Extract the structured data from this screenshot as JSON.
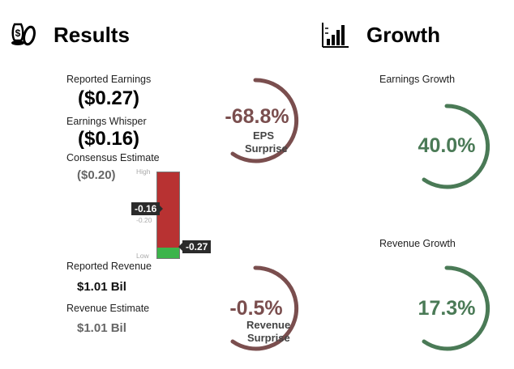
{
  "results": {
    "title": "Results",
    "icon": "money-bag-icon",
    "reported_earnings_label": "Reported Earnings",
    "reported_earnings_value": "($0.27)",
    "earnings_whisper_label": "Earnings Whisper",
    "earnings_whisper_value": "($0.16)",
    "consensus_label": "Consensus Estimate",
    "consensus_value": "($0.20)",
    "reported_revenue_label": "Reported Revenue",
    "reported_revenue_value": "$1.01 Bil",
    "revenue_estimate_label": "Revenue Estimate",
    "revenue_estimate_value": "$1.01 Bil"
  },
  "range_bar": {
    "high_label": "High",
    "low_label": "Low",
    "whisper_tag": "-0.16",
    "consensus_tick": "-0.20",
    "reported_tag": "-0.27",
    "bar_color": "#b83232",
    "low_color": "#3cb44b"
  },
  "eps_surprise": {
    "value": "-68.8%",
    "caption_line1": "EPS",
    "caption_line2": "Surprise",
    "color": "#7a4e4e"
  },
  "revenue_surprise": {
    "value": "-0.5%",
    "caption_line1": "Revenue",
    "caption_line2": "Surprise",
    "color": "#7a4e4e"
  },
  "growth": {
    "title": "Growth",
    "icon": "bar-chart-icon",
    "earnings_growth_label": "Earnings Growth",
    "earnings_growth_value": "40.0%",
    "revenue_growth_label": "Revenue Growth",
    "revenue_growth_value": "17.3%",
    "color": "#4a7a56"
  }
}
